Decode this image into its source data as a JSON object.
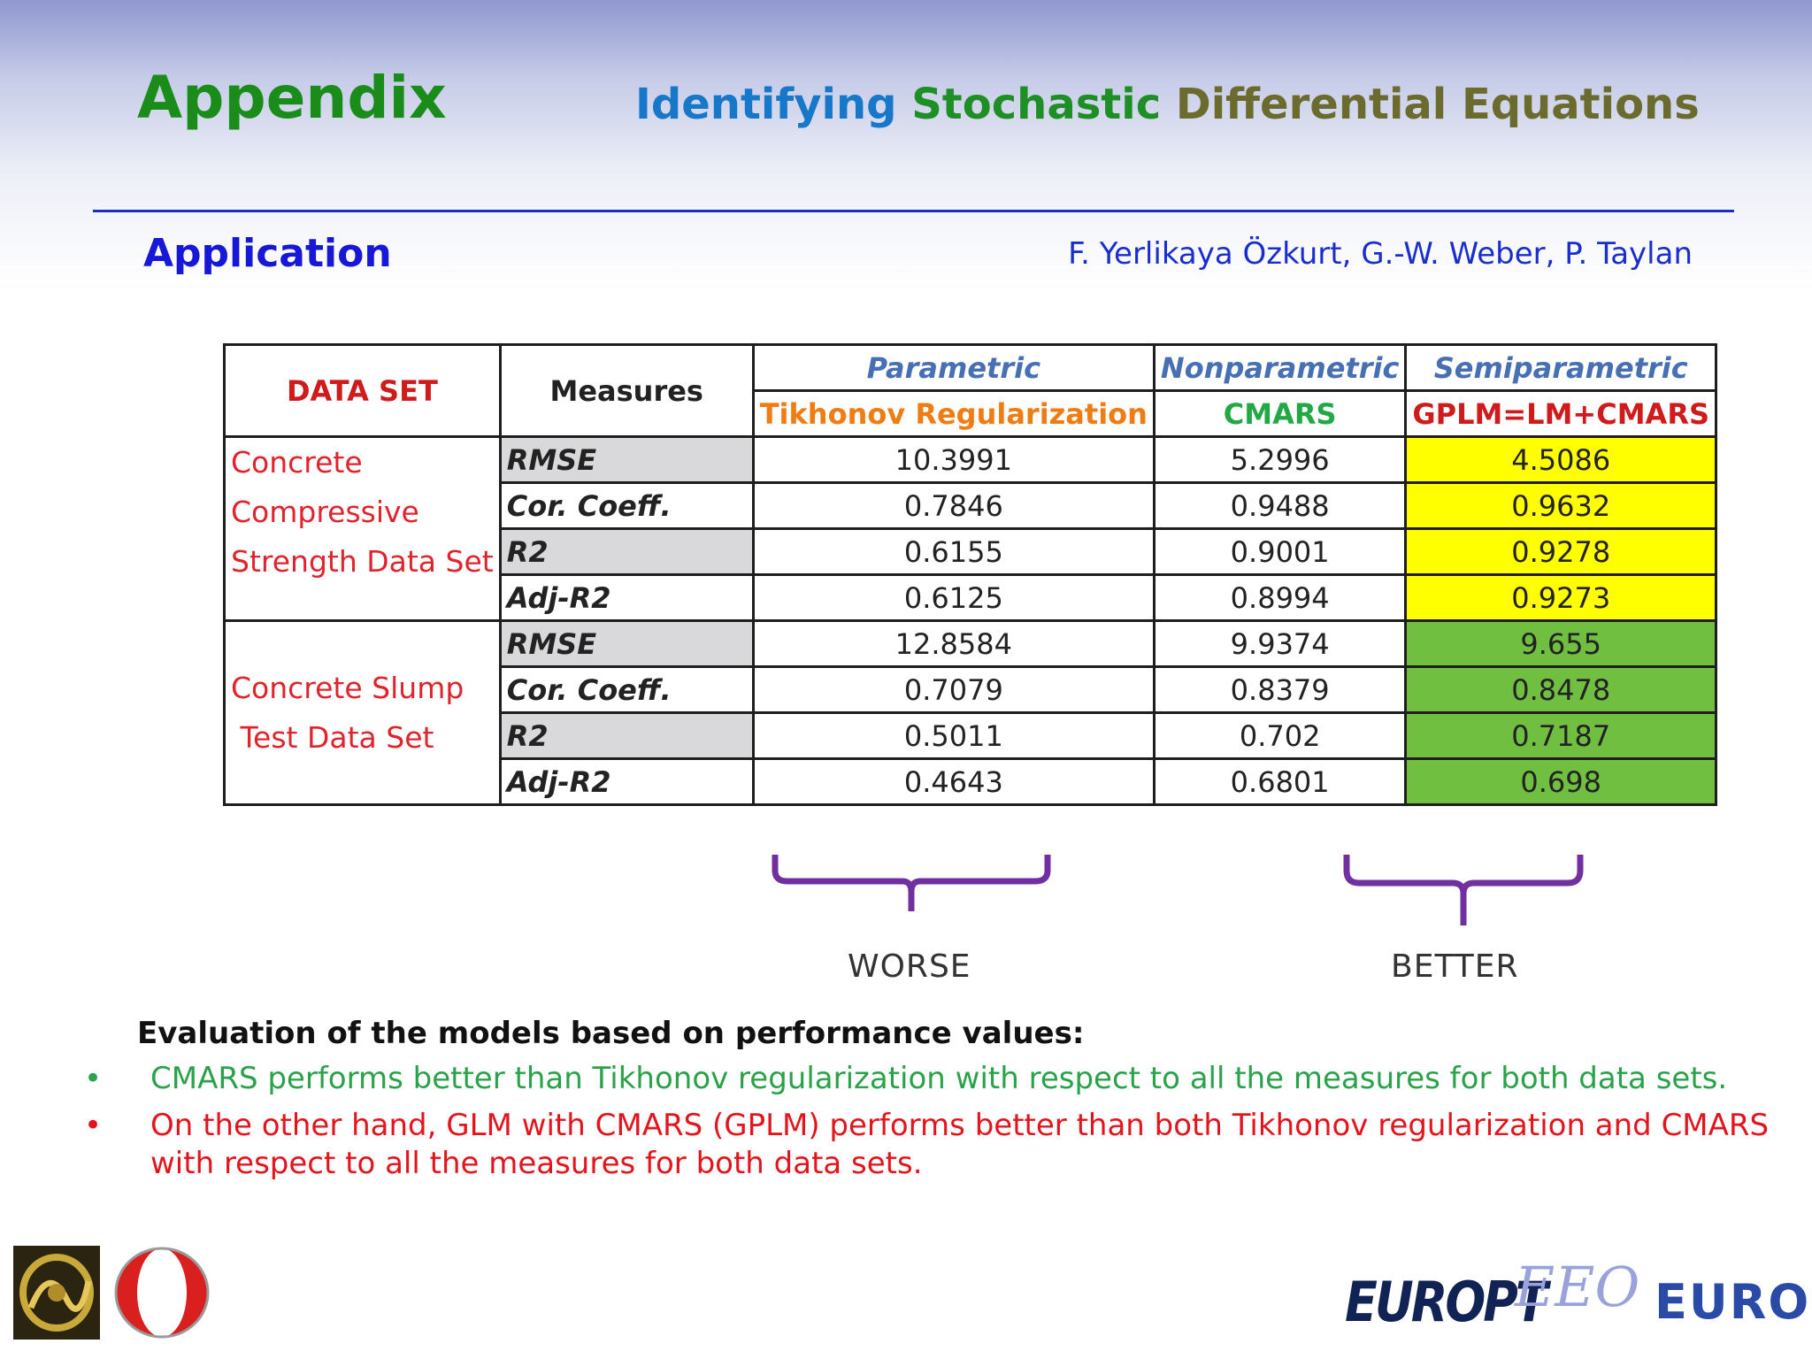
{
  "header": {
    "title": "Appendix",
    "subtitle_part1": "Identifying",
    "subtitle_part2": "Stochastic",
    "subtitle_part3": "Differential Equations"
  },
  "section": {
    "title": "Application",
    "authors": "F. Yerlikaya Özkurt, G.-W. Weber, P. Taylan"
  },
  "table": {
    "col_dataset": "DATA SET",
    "col_measures": "Measures",
    "methods": [
      {
        "category": "Parametric",
        "name": "Tikhonov Regularization"
      },
      {
        "category": "Nonparametric",
        "name": "CMARS"
      },
      {
        "category": "Semiparametric",
        "name": "GPLM=LM+CMARS"
      }
    ],
    "datasets": [
      {
        "name_lines": [
          "Concrete",
          "Compressive",
          "Strength Data Set"
        ],
        "rows": [
          {
            "measure": "RMSE",
            "values": [
              "10.3991",
              "5.2996",
              "4.5086"
            ]
          },
          {
            "measure": "Cor. Coeff.",
            "values": [
              "0.7846",
              "0.9488",
              "0.9632"
            ]
          },
          {
            "measure": "R2",
            "values": [
              "0.6155",
              "0.9001",
              "0.9278"
            ]
          },
          {
            "measure": "Adj-R2",
            "values": [
              "0.6125",
              "0.8994",
              "0.9273"
            ]
          }
        ]
      },
      {
        "name_lines": [
          "Concrete Slump",
          " Test Data Set"
        ],
        "rows": [
          {
            "measure": "RMSE",
            "values": [
              "12.8584",
              "9.9374",
              "9.655"
            ]
          },
          {
            "measure": "Cor. Coeff.",
            "values": [
              "0.7079",
              "0.8379",
              "0.8478"
            ]
          },
          {
            "measure": "R2",
            "values": [
              "0.5011",
              "0.702",
              "0.7187"
            ]
          },
          {
            "measure": "Adj-R2",
            "values": [
              "0.4643",
              "0.6801",
              "0.698"
            ]
          }
        ]
      }
    ],
    "highlight_colors": {
      "dataset1": "#ffff00",
      "dataset2": "#70bf41"
    }
  },
  "annotations": {
    "worse": "WORSE",
    "better": "BETTER",
    "bracket_color": "#7030a0"
  },
  "evaluation": {
    "heading": "Evaluation of the models based on performance values:",
    "bullets": [
      "CMARS performs better than Tikhonov regularization with respect to all the measures for both data sets.",
      "On the other hand, GLM with CMARS (GPLM) performs better than both Tikhonov regularization and CMARS with respect to all the measures for both data sets."
    ],
    "bullet_glyph": "•"
  },
  "logos": {
    "europt": "EUROPT",
    "eeo": "EEO",
    "euro": "EURO"
  }
}
